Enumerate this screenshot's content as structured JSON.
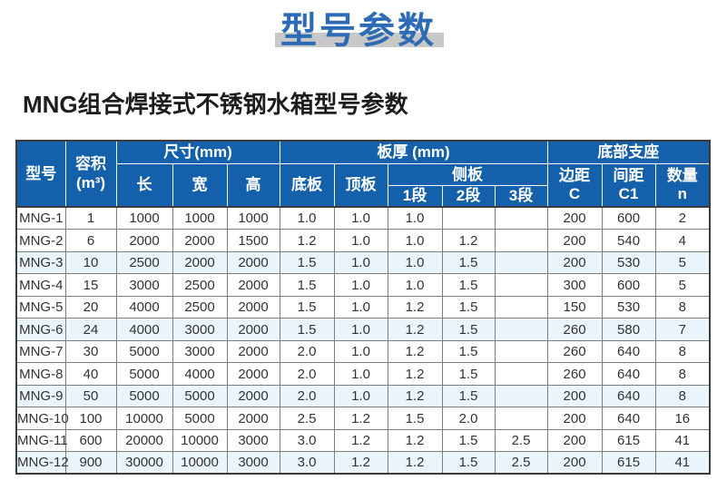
{
  "title": "型号参数",
  "heading": "MNG组合焊接式不锈钢水箱型号参数",
  "colors": {
    "header_blue": "#1560ab",
    "title_blue": "#2d6cb5",
    "title_bar_gray": "#c8c8c8",
    "row_tint_blue": "#e9f4fb"
  },
  "table": {
    "header": {
      "model": "型号",
      "volume_line1": "容积",
      "volume_line2": "(m³)",
      "size_group": "尺寸(mm)",
      "length": "长",
      "width": "宽",
      "height": "高",
      "thickness_group": "板厚 (mm)",
      "bottom_plate": "底板",
      "top_plate": "顶板",
      "side_plate_group": "侧板",
      "seg1": "1段",
      "seg2": "2段",
      "seg3": "3段",
      "support_group": "底部支座",
      "edge_line1": "边距",
      "edge_line2": "C",
      "spacing_line1": "间距",
      "spacing_line2": "C1",
      "qty_line1": "数量",
      "qty_line2": "n"
    },
    "rows": [
      [
        "MNG-1",
        "1",
        "1000",
        "1000",
        "1000",
        "1.0",
        "1.0",
        "1.0",
        "",
        "",
        "200",
        "600",
        "2"
      ],
      [
        "MNG-2",
        "6",
        "2000",
        "2000",
        "1500",
        "1.2",
        "1.0",
        "1.0",
        "1.2",
        "",
        "200",
        "540",
        "4"
      ],
      [
        "MNG-3",
        "10",
        "2500",
        "2000",
        "2000",
        "1.5",
        "1.0",
        "1.0",
        "1.5",
        "",
        "200",
        "530",
        "5"
      ],
      [
        "MNG-4",
        "15",
        "3000",
        "2500",
        "2000",
        "1.5",
        "1.0",
        "1.0",
        "1.5",
        "",
        "300",
        "600",
        "5"
      ],
      [
        "MNG-5",
        "20",
        "4000",
        "2500",
        "2000",
        "1.5",
        "1.0",
        "1.2",
        "1.5",
        "",
        "150",
        "530",
        "8"
      ],
      [
        "MNG-6",
        "24",
        "4000",
        "3000",
        "2000",
        "1.5",
        "1.0",
        "1.2",
        "1.5",
        "",
        "260",
        "580",
        "7"
      ],
      [
        "MNG-7",
        "30",
        "5000",
        "3000",
        "2000",
        "2.0",
        "1.0",
        "1.2",
        "1.5",
        "",
        "260",
        "640",
        "8"
      ],
      [
        "MNG-8",
        "40",
        "5000",
        "4000",
        "2000",
        "2.0",
        "1.0",
        "1.2",
        "1.5",
        "",
        "260",
        "640",
        "8"
      ],
      [
        "MNG-9",
        "50",
        "5000",
        "5000",
        "2000",
        "2.0",
        "1.0",
        "1.2",
        "1.5",
        "",
        "200",
        "640",
        "8"
      ],
      [
        "MNG-10",
        "100",
        "10000",
        "5000",
        "2000",
        "2.5",
        "1.2",
        "1.5",
        "2.0",
        "",
        "200",
        "640",
        "16"
      ],
      [
        "MNG-11",
        "600",
        "20000",
        "10000",
        "3000",
        "3.0",
        "1.2",
        "1.2",
        "1.5",
        "2.5",
        "200",
        "615",
        "41"
      ],
      [
        "MNG-12",
        "900",
        "30000",
        "10000",
        "3000",
        "3.0",
        "1.2",
        "1.2",
        "1.5",
        "2.5",
        "200",
        "615",
        "41"
      ]
    ]
  }
}
